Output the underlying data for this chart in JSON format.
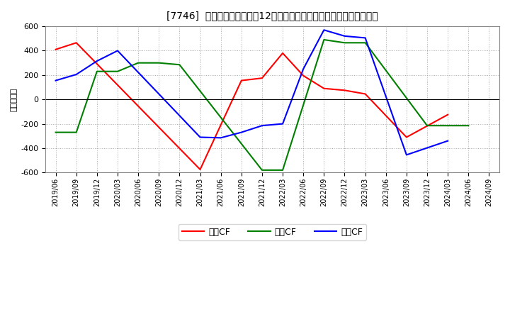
{
  "title": "[7746]  キャッシュフローの12か月移動合計の対前年同期増減額の推移",
  "ylabel": "（百万円）",
  "background_color": "#ffffff",
  "plot_bg_color": "#ffffff",
  "grid_color": "#aaaaaa",
  "ylim": [
    -600,
    600
  ],
  "yticks": [
    -600,
    -400,
    -200,
    0,
    200,
    400,
    600
  ],
  "dates": [
    "2019/06",
    "2019/09",
    "2019/12",
    "2020/03",
    "2020/06",
    "2020/09",
    "2020/12",
    "2021/03",
    "2021/06",
    "2021/09",
    "2021/12",
    "2022/03",
    "2022/06",
    "2022/09",
    "2022/12",
    "2023/03",
    "2023/06",
    "2023/09",
    "2023/12",
    "2024/03",
    "2024/06",
    "2024/09"
  ],
  "eigyo_x": [
    0,
    1,
    7,
    9,
    10,
    11,
    12,
    13,
    14,
    15,
    17,
    19
  ],
  "eigyo_y": [
    410,
    465,
    -575,
    155,
    175,
    380,
    195,
    90,
    75,
    45,
    -310,
    -125
  ],
  "toushi_x": [
    0,
    1,
    2,
    3,
    4,
    5,
    6,
    10,
    11,
    13,
    14,
    15,
    18,
    19,
    20
  ],
  "toushi_y": [
    -270,
    -270,
    230,
    230,
    300,
    300,
    285,
    -580,
    -580,
    490,
    465,
    465,
    -215,
    -215,
    -215
  ],
  "free_x": [
    0,
    1,
    2,
    3,
    7,
    8,
    9,
    10,
    11,
    12,
    13,
    14,
    15,
    17,
    19
  ],
  "free_y": [
    155,
    205,
    315,
    400,
    -310,
    -315,
    -270,
    -215,
    -200,
    250,
    570,
    520,
    505,
    -455,
    -340
  ],
  "series": [
    {
      "label": "営業CF",
      "color": "#ff0000"
    },
    {
      "label": "投賄CF",
      "color": "#008000"
    },
    {
      "label": "フリCF",
      "color": "#0000ff"
    }
  ]
}
